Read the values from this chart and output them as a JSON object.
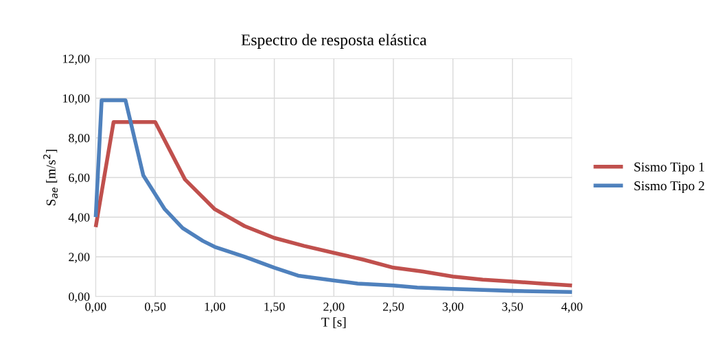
{
  "chart_data": {
    "type": "line",
    "title": "Espectro de resposta elástica",
    "xlabel": "T [s]",
    "ylabel": "S$_{ae}$ [m/s$^{2}$]",
    "series": [
      {
        "name": "Sismo Tipo 1",
        "color": "#c0504d",
        "x": [
          0,
          0.15,
          0.5,
          0.75,
          1.0,
          1.25,
          1.5,
          1.75,
          2.0,
          2.25,
          2.5,
          2.75,
          3.0,
          3.25,
          3.5,
          3.75,
          4.0
        ],
        "values": [
          3.5,
          8.8,
          8.8,
          5.9,
          4.4,
          3.55,
          2.95,
          2.55,
          2.2,
          1.85,
          1.45,
          1.25,
          1.0,
          0.85,
          0.75,
          0.65,
          0.55
        ]
      },
      {
        "name": "Sismo Tipo 2",
        "color": "#4f81bd",
        "x": [
          0,
          0.05,
          0.25,
          0.4,
          0.58,
          0.73,
          0.9,
          1.0,
          1.25,
          1.5,
          1.7,
          2.0,
          2.2,
          2.5,
          2.7,
          3.0,
          3.5,
          4.0
        ],
        "values": [
          4.0,
          9.9,
          9.9,
          6.1,
          4.4,
          3.45,
          2.8,
          2.5,
          2.0,
          1.45,
          1.05,
          0.8,
          0.65,
          0.55,
          0.45,
          0.38,
          0.28,
          0.22
        ]
      }
    ],
    "xlim": [
      0,
      4
    ],
    "ylim": [
      0,
      12
    ],
    "xticks": [
      {
        "value": 0,
        "label": "0,00"
      },
      {
        "value": 0.5,
        "label": "0,50"
      },
      {
        "value": 1,
        "label": "1,00"
      },
      {
        "value": 1.5,
        "label": "1,50"
      },
      {
        "value": 2,
        "label": "2,00"
      },
      {
        "value": 2.5,
        "label": "2,50"
      },
      {
        "value": 3,
        "label": "3,00"
      },
      {
        "value": 3.5,
        "label": "3,50"
      },
      {
        "value": 4,
        "label": "4,00"
      }
    ],
    "yticks": [
      {
        "value": 0,
        "label": "0,00"
      },
      {
        "value": 2,
        "label": "2,00"
      },
      {
        "value": 4,
        "label": "4,00"
      },
      {
        "value": 6,
        "label": "6,00"
      },
      {
        "value": 8,
        "label": "8,00"
      },
      {
        "value": 10,
        "label": "10,00"
      },
      {
        "value": 12,
        "label": "12,00"
      }
    ],
    "grid": true,
    "legend": "right",
    "marker": "none",
    "line_style": "solid"
  }
}
